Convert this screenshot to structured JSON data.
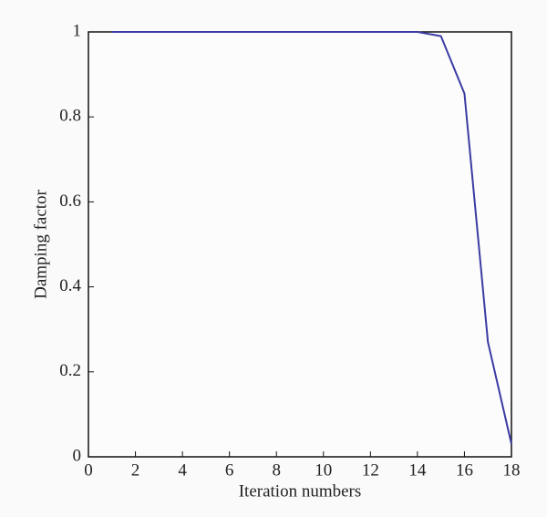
{
  "chart_data": {
    "type": "line",
    "x_label": "Iteration numbers",
    "y_label": "Damping factor",
    "x": [
      1,
      2,
      3,
      4,
      5,
      6,
      7,
      8,
      9,
      10,
      11,
      12,
      13,
      14,
      15,
      16,
      17,
      18
    ],
    "series": [
      {
        "color": "#3b3ba3",
        "values": [
          1,
          1,
          1,
          1,
          1,
          1,
          1,
          1,
          1,
          1,
          1,
          1,
          1,
          1,
          0.99,
          0.855,
          0.27,
          0.03
        ]
      }
    ],
    "xlim": [
      0,
      18
    ],
    "xticks": [
      0,
      2,
      4,
      6,
      8,
      10,
      12,
      14,
      16,
      18
    ],
    "ylim": [
      0,
      1
    ],
    "yticks": [
      0,
      0.2,
      0.4,
      0.6,
      0.8,
      1
    ]
  }
}
